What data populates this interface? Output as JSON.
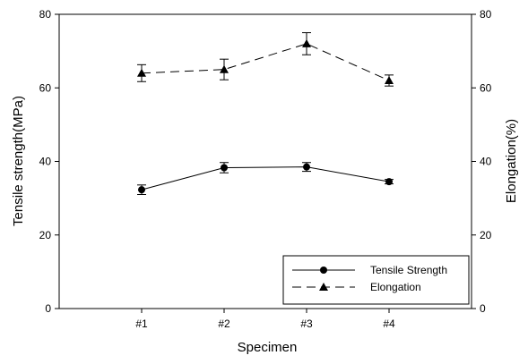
{
  "chart_data": {
    "type": "line",
    "categories": [
      "#1",
      "#2",
      "#3",
      "#4"
    ],
    "xlabel": "Specimen",
    "ylabel_left": "Tensile strength(MPa)",
    "ylabel_right": "Elongation(%)",
    "ylim_left": [
      0,
      80
    ],
    "ylim_right": [
      0,
      80
    ],
    "yticks_left": [
      0,
      20,
      40,
      60,
      80
    ],
    "yticks_right": [
      0,
      20,
      40,
      60,
      80
    ],
    "grid": false,
    "legend_position": "bottom-right",
    "series": [
      {
        "name": "Tensile Strength",
        "axis": "left",
        "marker": "circle",
        "line_style": "solid",
        "values": [
          32.3,
          38.3,
          38.5,
          34.5
        ],
        "errors": [
          1.3,
          1.4,
          1.2,
          0.6
        ]
      },
      {
        "name": "Elongation",
        "axis": "right",
        "marker": "triangle",
        "line_style": "dashed",
        "values": [
          64.0,
          65.0,
          72.0,
          62.0
        ],
        "errors": [
          2.3,
          2.8,
          3.0,
          1.5
        ]
      }
    ]
  }
}
